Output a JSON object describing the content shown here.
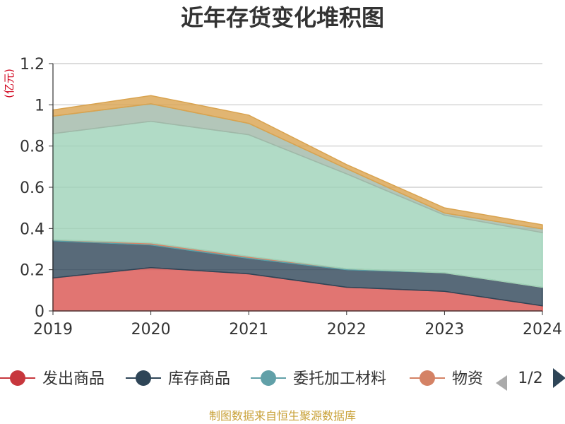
{
  "chart_data": {
    "type": "area",
    "stacked": true,
    "title": "近年存货变化堆积图",
    "unit_label": "(亿元)",
    "categories": [
      "2019",
      "2020",
      "2021",
      "2022",
      "2023",
      "2024"
    ],
    "ylim": [
      0,
      1.2
    ],
    "yticks": [
      0,
      0.2,
      0.4,
      0.6,
      0.8,
      1,
      1.2
    ],
    "ytick_labels": [
      "0",
      "0.2",
      "0.4",
      "0.6",
      "0.8",
      "1",
      "1.2"
    ],
    "grid": true,
    "series": [
      {
        "name": "发出商品",
        "color": "#d9534f",
        "values": [
          0.16,
          0.21,
          0.18,
          0.115,
          0.095,
          0.025
        ]
      },
      {
        "name": "库存商品",
        "color": "#2e4557",
        "values": [
          0.18,
          0.11,
          0.075,
          0.085,
          0.09,
          0.09
        ]
      },
      {
        "name": "委托加工材料",
        "color": "#5aa1a8",
        "values": [
          0.005,
          0.005,
          0.005,
          0.005,
          0.0,
          0.0
        ]
      },
      {
        "name": "物资",
        "color": "#d98366",
        "values": [
          0.0,
          0.005,
          0.005,
          0.0,
          0.0,
          0.0
        ]
      },
      {
        "name": "",
        "color": "#9ed2b8",
        "values": [
          0.515,
          0.59,
          0.59,
          0.46,
          0.28,
          0.265
        ]
      },
      {
        "name": "",
        "color": "#a0b8a8",
        "values": [
          0.085,
          0.085,
          0.055,
          0.025,
          0.01,
          0.018
        ]
      },
      {
        "name": "",
        "color": "#d9a34f",
        "values": [
          0.03,
          0.04,
          0.04,
          0.02,
          0.025,
          0.02
        ]
      }
    ],
    "legend": {
      "position": "bottom",
      "visible_items": [
        {
          "name": "发出商品",
          "color": "#c7373d"
        },
        {
          "name": "库存商品",
          "color": "#2e4557"
        },
        {
          "name": "委托加工材料",
          "color": "#61a0a8"
        },
        {
          "name": "物资",
          "color": "#d48265"
        }
      ],
      "page_indicator": "1/2"
    },
    "source": "制图数据来自恒生聚源数据库"
  }
}
